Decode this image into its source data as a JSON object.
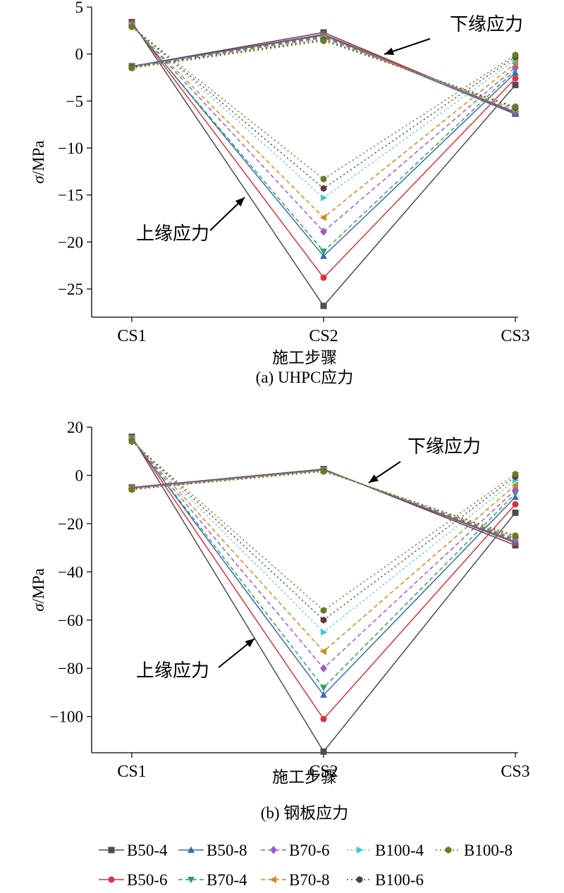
{
  "chart_data": [
    {
      "type": "line",
      "caption": "(a) UHPC应力",
      "xlabel": "施工步骤",
      "ylabel": "σ/MPa",
      "categories": [
        "CS1",
        "CS2",
        "CS3"
      ],
      "ylim": [
        -28,
        5
      ],
      "yticks": [
        5,
        0,
        -5,
        -10,
        -15,
        -20,
        -25
      ],
      "ytick_labels": [
        "5",
        "0",
        "−5",
        "−10",
        "−15",
        "−20",
        "−25"
      ],
      "annotations": [
        {
          "text": "下缘应力",
          "target": "bottom-edge series, CS2–CS3 segment"
        },
        {
          "text": "上缘应力",
          "target": "top-edge series, CS1–CS2 segment"
        }
      ],
      "series": [
        {
          "name": "B50-4",
          "edge": "top",
          "values": [
            3.4,
            -26.8,
            -3.3
          ]
        },
        {
          "name": "B50-6",
          "edge": "top",
          "values": [
            3.3,
            -23.8,
            -2.6
          ]
        },
        {
          "name": "B50-8",
          "edge": "top",
          "values": [
            3.2,
            -21.5,
            -2.0
          ]
        },
        {
          "name": "B70-4",
          "edge": "top",
          "values": [
            3.1,
            -21.0,
            -1.7
          ]
        },
        {
          "name": "B70-6",
          "edge": "top",
          "values": [
            3.1,
            -18.9,
            -1.4
          ]
        },
        {
          "name": "B70-8",
          "edge": "top",
          "values": [
            3.0,
            -17.4,
            -1.0
          ]
        },
        {
          "name": "B100-4",
          "edge": "top",
          "values": [
            3.0,
            -15.3,
            -0.6
          ]
        },
        {
          "name": "B100-6",
          "edge": "top",
          "values": [
            2.9,
            -14.3,
            -0.3
          ]
        },
        {
          "name": "B100-8",
          "edge": "top",
          "values": [
            2.9,
            -13.3,
            -0.1
          ]
        },
        {
          "name": "B50-4",
          "edge": "bottom",
          "values": [
            -1.3,
            2.3,
            -6.3
          ]
        },
        {
          "name": "B50-6",
          "edge": "bottom",
          "values": [
            -1.3,
            2.1,
            -6.2
          ]
        },
        {
          "name": "B50-8",
          "edge": "bottom",
          "values": [
            -1.3,
            2.0,
            -6.4
          ]
        },
        {
          "name": "B70-4",
          "edge": "bottom",
          "values": [
            -1.4,
            1.9,
            -6.3
          ]
        },
        {
          "name": "B70-6",
          "edge": "bottom",
          "values": [
            -1.4,
            1.8,
            -6.1
          ]
        },
        {
          "name": "B70-8",
          "edge": "bottom",
          "values": [
            -1.4,
            1.7,
            -5.9
          ]
        },
        {
          "name": "B100-4",
          "edge": "bottom",
          "values": [
            -1.4,
            1.6,
            -5.8
          ]
        },
        {
          "name": "B100-6",
          "edge": "bottom",
          "values": [
            -1.4,
            1.5,
            -5.7
          ]
        },
        {
          "name": "B100-8",
          "edge": "bottom",
          "values": [
            -1.5,
            1.4,
            -5.6
          ]
        }
      ]
    },
    {
      "type": "line",
      "caption": "(b) 钢板应力",
      "xlabel": "施工步骤",
      "ylabel": "σ/MPa",
      "categories": [
        "CS1",
        "CS2",
        "CS3"
      ],
      "ylim": [
        -115,
        20
      ],
      "yticks": [
        20,
        0,
        -20,
        -40,
        -60,
        -80,
        -100
      ],
      "ytick_labels": [
        "20",
        "0",
        "−20",
        "−40",
        "−60",
        "−80",
        "−100"
      ],
      "annotations": [
        {
          "text": "下缘应力",
          "target": "bottom-edge series, CS2–CS3 segment"
        },
        {
          "text": "上缘应力",
          "target": "top-edge series, CS1–CS2 segment"
        }
      ],
      "series": [
        {
          "name": "B50-4",
          "edge": "top",
          "values": [
            16,
            -114.5,
            -15.5
          ]
        },
        {
          "name": "B50-6",
          "edge": "top",
          "values": [
            15.8,
            -101,
            -12
          ]
        },
        {
          "name": "B50-8",
          "edge": "top",
          "values": [
            15.5,
            -91,
            -9
          ]
        },
        {
          "name": "B70-4",
          "edge": "top",
          "values": [
            15.3,
            -88,
            -7.5
          ]
        },
        {
          "name": "B70-6",
          "edge": "top",
          "values": [
            15,
            -80,
            -6
          ]
        },
        {
          "name": "B70-8",
          "edge": "top",
          "values": [
            14.8,
            -73,
            -4
          ]
        },
        {
          "name": "B100-4",
          "edge": "top",
          "values": [
            14.5,
            -65,
            -2
          ]
        },
        {
          "name": "B100-6",
          "edge": "top",
          "values": [
            14.2,
            -60,
            -0.5
          ]
        },
        {
          "name": "B100-8",
          "edge": "top",
          "values": [
            14,
            -56,
            0.5
          ]
        },
        {
          "name": "B50-4",
          "edge": "bottom",
          "values": [
            -5,
            2.6,
            -29
          ]
        },
        {
          "name": "B50-6",
          "edge": "bottom",
          "values": [
            -5,
            2.4,
            -28
          ]
        },
        {
          "name": "B50-8",
          "edge": "bottom",
          "values": [
            -5.2,
            2.3,
            -27.5
          ]
        },
        {
          "name": "B70-4",
          "edge": "bottom",
          "values": [
            -5.4,
            2.2,
            -27
          ]
        },
        {
          "name": "B70-6",
          "edge": "bottom",
          "values": [
            -5.5,
            2.1,
            -26.5
          ]
        },
        {
          "name": "B70-8",
          "edge": "bottom",
          "values": [
            -5.6,
            2.0,
            -26
          ]
        },
        {
          "name": "B100-4",
          "edge": "bottom",
          "values": [
            -5.7,
            1.9,
            -25.5
          ]
        },
        {
          "name": "B100-6",
          "edge": "bottom",
          "values": [
            -5.8,
            1.8,
            -25.2
          ]
        },
        {
          "name": "B100-8",
          "edge": "bottom",
          "values": [
            -5.9,
            1.6,
            -25
          ]
        }
      ]
    }
  ],
  "legend": {
    "placement": "bottom",
    "rows": [
      [
        {
          "name": "B50-4",
          "color": "#4d4d4d",
          "marker": "square",
          "dash": "solid"
        },
        {
          "name": "B50-8",
          "color": "#3c6ab4",
          "marker": "triangle-up",
          "dash": "solid"
        },
        {
          "name": "B70-6",
          "color": "#9a5cc6",
          "marker": "diamond",
          "dash": "dashed"
        },
        {
          "name": "B100-4",
          "color": "#3ec7c7",
          "marker": "triangle-right",
          "dash": "dotted"
        },
        {
          "name": "B100-8",
          "color": "#6b7a23",
          "marker": "hexagon",
          "dash": "dotted"
        }
      ],
      [
        {
          "name": "B50-6",
          "color": "#e0303c",
          "marker": "circle",
          "dash": "solid"
        },
        {
          "name": "B70-4",
          "color": "#2fa25a",
          "marker": "triangle-down",
          "dash": "dashed"
        },
        {
          "name": "B70-8",
          "color": "#c98a1e",
          "marker": "triangle-left",
          "dash": "dashed"
        },
        {
          "name": "B100-6",
          "color": "#5a3b3b",
          "marker": "hexagon",
          "dash": "dotted"
        }
      ]
    ]
  }
}
